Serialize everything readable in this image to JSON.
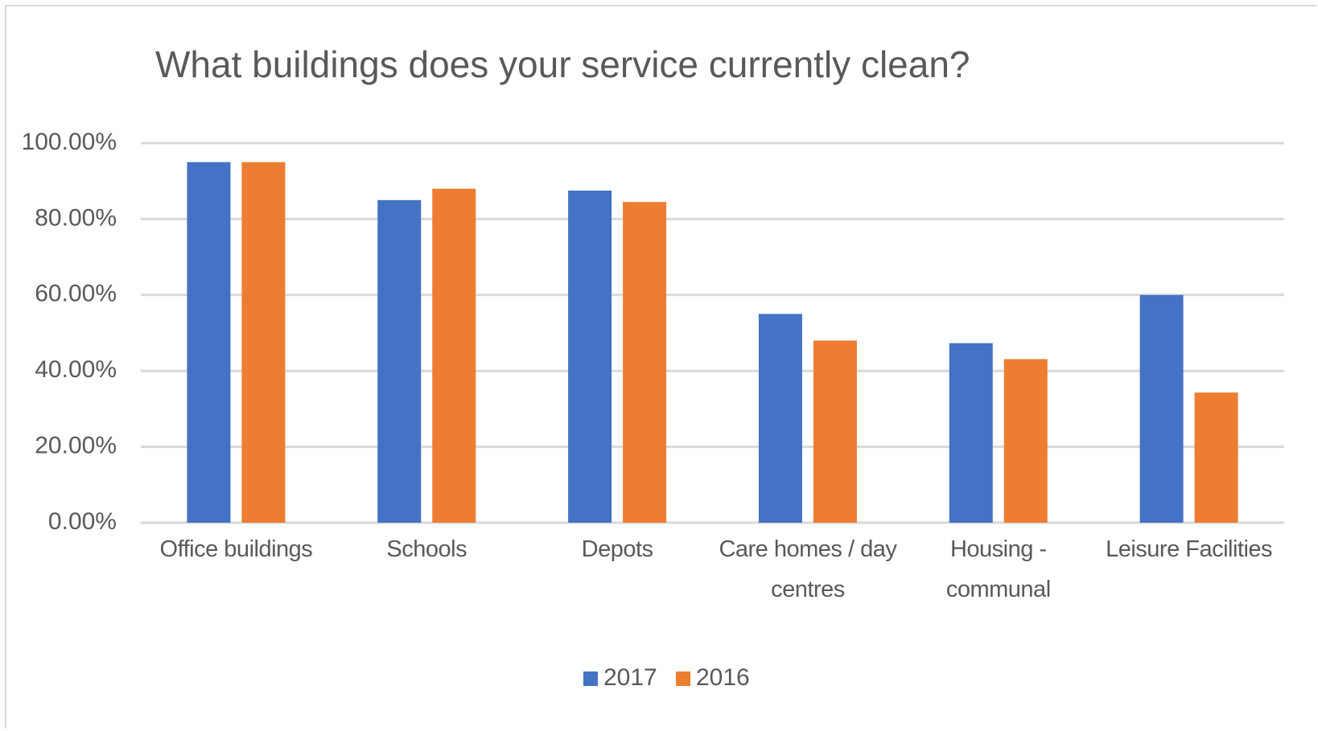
{
  "chart_data": {
    "type": "bar",
    "title": "What buildings does your service currently clean?",
    "categories": [
      "Office buildings",
      "Schools",
      "Depots",
      "Care homes / day centres",
      "Housing - communal",
      "Leisure Facilities"
    ],
    "series": [
      {
        "name": "2017",
        "color": "#4472c4",
        "values": [
          95,
          85,
          87.5,
          55,
          47.3,
          60
        ]
      },
      {
        "name": "2016",
        "color": "#ed7d31",
        "values": [
          95,
          88,
          84.5,
          48,
          43.1,
          34.3
        ]
      }
    ],
    "ylim": [
      0,
      100
    ],
    "yticks": [
      {
        "value": 0,
        "label": "0.00%"
      },
      {
        "value": 20,
        "label": "20.00%"
      },
      {
        "value": 40,
        "label": "40.00%"
      },
      {
        "value": 60,
        "label": "60.00%"
      },
      {
        "value": 80,
        "label": "80.00%"
      },
      {
        "value": 100,
        "label": "100.00%"
      }
    ],
    "grid": true,
    "legend": "bottom"
  }
}
